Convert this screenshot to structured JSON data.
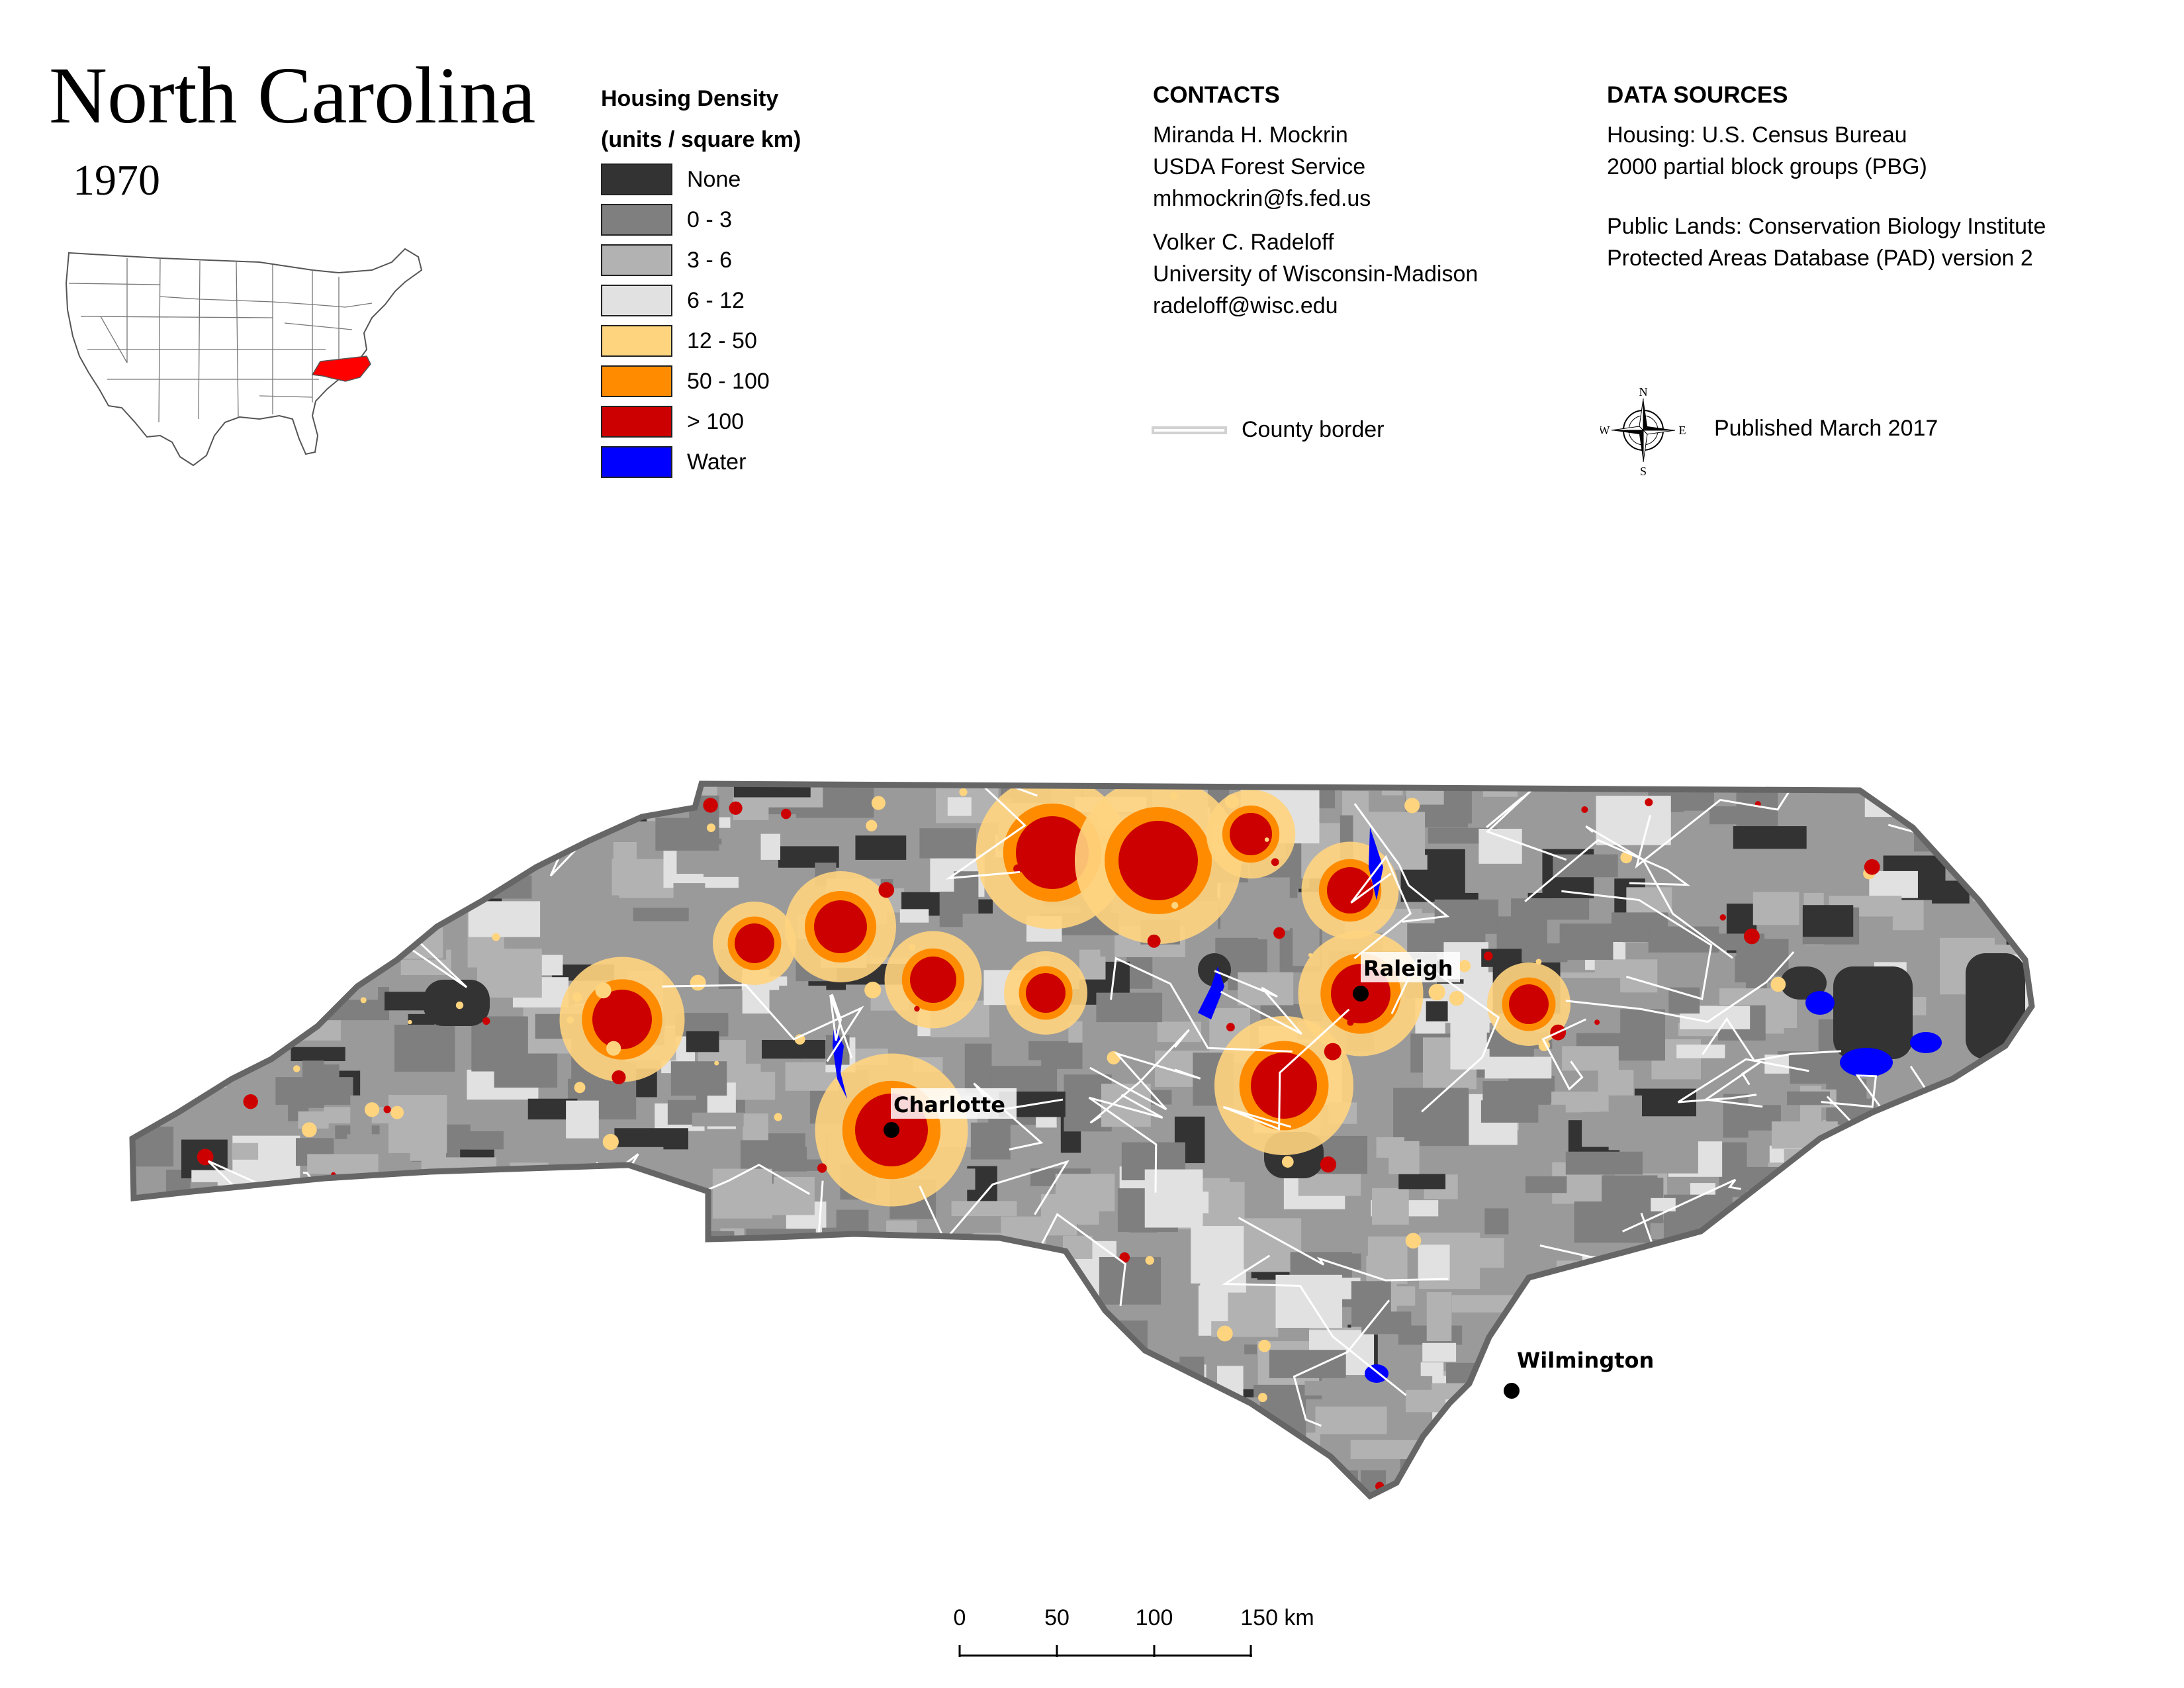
{
  "title": "North Carolina",
  "year": "1970",
  "legend": {
    "title_line1": "Housing Density",
    "title_line2": "(units / square km)",
    "classes": [
      {
        "label": "None",
        "color": "#333333"
      },
      {
        "label": "0 - 3",
        "color": "#7f7f7f"
      },
      {
        "label": "3 - 6",
        "color": "#b2b2b2"
      },
      {
        "label": "6 - 12",
        "color": "#e1e1e1"
      },
      {
        "label": "12 - 50",
        "color": "#ffd47f"
      },
      {
        "label": "50 - 100",
        "color": "#ff8c00"
      },
      {
        "label": "> 100",
        "color": "#cc0000"
      },
      {
        "label": "Water",
        "color": "#0000ff"
      }
    ]
  },
  "contacts": {
    "heading": "CONTACTS",
    "person1": {
      "name": "Miranda H. Mockrin",
      "org": "USDA Forest Service",
      "email": "mhmockrin@fs.fed.us"
    },
    "person2": {
      "name": "Volker C. Radeloff",
      "org": "University of Wisconsin-Madison",
      "email": "radeloff@wisc.edu"
    }
  },
  "data_sources": {
    "heading": "DATA SOURCES",
    "housing_line1": "Housing: U.S. Census Bureau",
    "housing_line2": "2000 partial block groups (PBG)",
    "public_line1": "Public Lands: Conservation Biology Institute",
    "public_line2": "Protected Areas Database (PAD) version 2"
  },
  "county_border_label": "County border",
  "published": "Published March 2017",
  "compass": {
    "n": "N",
    "s": "S",
    "e": "E",
    "w": "W"
  },
  "cities": [
    {
      "name": "Charlotte"
    },
    {
      "name": "Raleigh"
    },
    {
      "name": "Wilmington"
    }
  ],
  "scale_bar": {
    "labels": [
      "0",
      "50",
      "100",
      "150 km"
    ]
  },
  "colors": {
    "highlight_state": "#ff0000",
    "state_outline": "#666666",
    "county_border": "#ffffff"
  }
}
